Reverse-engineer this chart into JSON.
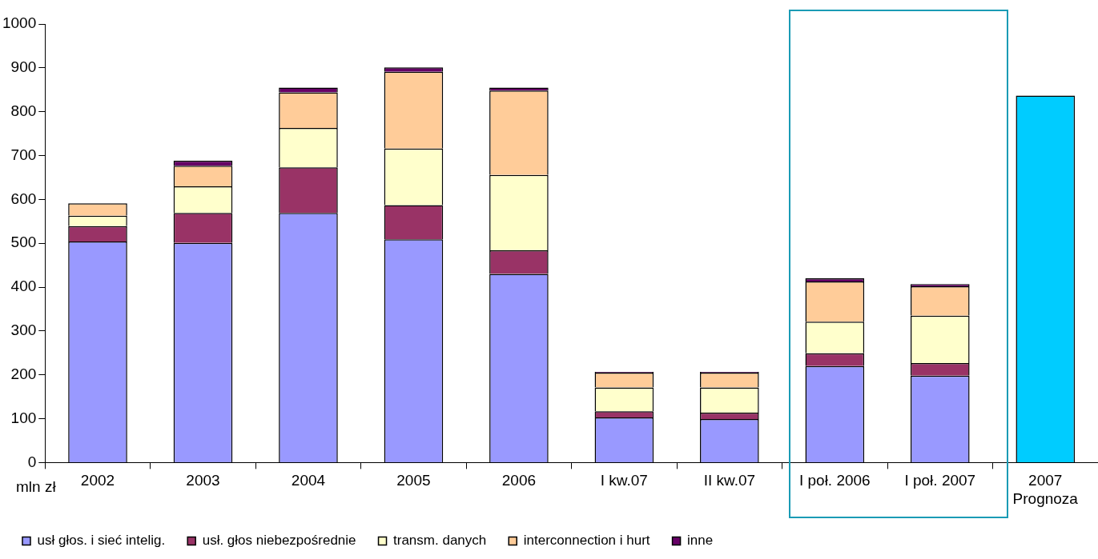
{
  "chart_data": {
    "type": "bar",
    "stacked": true,
    "ylabel": "mln zł",
    "categories": [
      "2002",
      "2003",
      "2004",
      "2005",
      "2006",
      "I kw.07",
      "II kw.07",
      "I poł. 2006",
      "I poł. 2007",
      "2007\nPrognoza"
    ],
    "series": [
      {
        "name": "usł głos. i sieć intelig.",
        "color": "#9999ff",
        "values": [
          504,
          501,
          569,
          509,
          430,
          103,
          99,
          220,
          198,
          null
        ]
      },
      {
        "name": "usł. głos niebezpośrednie",
        "color": "#993366",
        "values": [
          35,
          68,
          104,
          78,
          54,
          14,
          15,
          29,
          29,
          null
        ]
      },
      {
        "name": "transm. danych",
        "color": "#ffffcc",
        "values": [
          24,
          61,
          90,
          129,
          172,
          54,
          57,
          72,
          108,
          null
        ]
      },
      {
        "name": "interconnection i hurt",
        "color": "#ffcc99",
        "values": [
          28,
          47,
          81,
          175,
          192,
          34,
          34,
          92,
          67,
          null
        ]
      },
      {
        "name": "inne",
        "color": "#660066",
        "values": [
          0,
          11,
          11,
          10,
          7,
          2,
          2,
          7,
          5,
          null
        ]
      },
      {
        "color": "#00ccff",
        "values": [
          null,
          null,
          null,
          null,
          null,
          null,
          null,
          null,
          null,
          837
        ]
      }
    ],
    "ylim": [
      0,
      1000
    ],
    "yticks": [
      0,
      100,
      200,
      300,
      400,
      500,
      600,
      700,
      800,
      900,
      1000
    ],
    "grid": false,
    "legend": "bottom"
  }
}
